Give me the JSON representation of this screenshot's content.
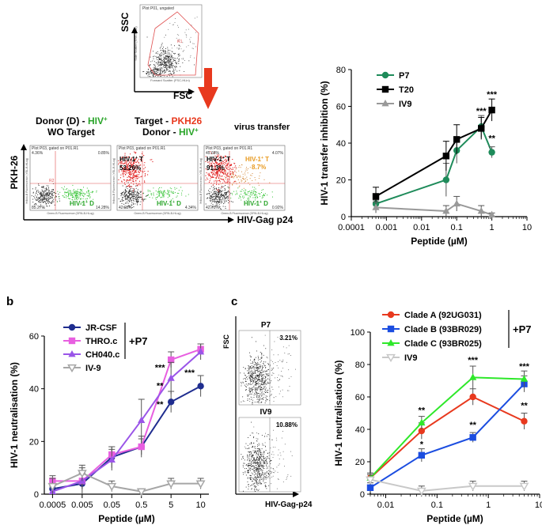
{
  "panels": {
    "a": "a",
    "b": "b",
    "c": "c"
  },
  "flow": {
    "ssc": "SSC",
    "fsc": "FSC",
    "pkh26": "PKH-26",
    "hiv_gag": "HIV-Gag p24",
    "scatter_title": "Plot P01, ungated",
    "gate_r1": "R1",
    "donor_title_1": "Donor (D) - ",
    "donor_title_hiv": "HIV",
    "donor_title_2": "WO Target",
    "target_title_1": "Target - ",
    "target_title_pkh": "PKH26",
    "target_title_2": "Donor - ",
    "virus_transfer": "virus transfer",
    "plot1_title": "Plot P03, gated on P01.R1",
    "plot2_title": "Plot P03, gated on P01.R1",
    "plot3_title": "Plot P03, gated on P01.R1",
    "plot1_q_ul": "4.36%",
    "plot1_q_ur": "0.85%",
    "plot1_q_ll": "85.27%",
    "plot1_q_lr": "14.28%",
    "plot2_q_ll": "42.28%",
    "plot2_q_lr": "4.34%",
    "plot3_q_ul": "45.68%",
    "plot3_q_ur": "4.07%",
    "plot3_q_ll": "42.73%",
    "plot3_q_lr": "0.92%",
    "hiv_d": "HIV-1",
    "hiv_d_sup": "+",
    "hiv_d_suffix": " D",
    "hiv_t": "HIV-1",
    "hiv_t_suffix": " T",
    "plot2_pct": "53.26%",
    "plot3_pct": "91.3%",
    "plot3_orange": "HIV-1",
    "plot3_orange_pct": "8.7%",
    "plot_ylabel": "Yellow-B Fluorescence (YEL-B-HLog)",
    "plot_xlabel": "Green-B Fluorescence (GRN-B-HLog)",
    "scatter_ylabel": "Side Scatter (SSC-HLin)",
    "scatter_xlabel": "Forward Scatter (FSC-HLin)",
    "gate_r2": "R2"
  },
  "fig_c_flow": {
    "fsc": "FSC",
    "xlabel": "HIV-Gag-p24",
    "top_label": "P7",
    "top_pct": "3.21%",
    "bottom_label": "IV9",
    "bottom_pct": "10.88%"
  },
  "chart_data": [
    {
      "id": "a_right",
      "type": "line",
      "xscale": "log",
      "xlim": [
        0.0001,
        10
      ],
      "ylim": [
        0,
        80
      ],
      "xticks": [
        "0.0001",
        "0.001",
        "0.01",
        "0.1",
        "1",
        "10"
      ],
      "yticks": [
        "0",
        "20",
        "40",
        "60",
        "80"
      ],
      "xlabel": "Peptide (µM)",
      "ylabel": "HIV-1 transfer inhibition (%)",
      "legend_position": "top-left",
      "series": [
        {
          "name": "P7",
          "color": "#1e8b5a",
          "marker": "circle",
          "x": [
            0.0005,
            0.05,
            0.1,
            0.5,
            1
          ],
          "y": [
            7,
            20,
            36,
            49,
            35
          ],
          "err": [
            2,
            9,
            7,
            6,
            3
          ]
        },
        {
          "name": "T20",
          "color": "#000000",
          "marker": "square",
          "x": [
            0.0005,
            0.05,
            0.1,
            0.5,
            1
          ],
          "y": [
            11,
            33,
            42,
            48,
            58
          ],
          "err": [
            5,
            8,
            8,
            6,
            6
          ]
        },
        {
          "name": "IV9",
          "color": "#999999",
          "marker": "triangle",
          "x": [
            0.0005,
            0.05,
            0.1,
            0.5,
            1
          ],
          "y": [
            5,
            3,
            7,
            3,
            1
          ],
          "err": [
            3,
            3,
            4,
            3,
            1
          ]
        }
      ],
      "annotations": [
        {
          "x": 0.5,
          "y": 56,
          "text": "***"
        },
        {
          "x": 1,
          "y": 65,
          "text": "***"
        },
        {
          "x": 1,
          "y": 41,
          "text": "**"
        }
      ]
    },
    {
      "id": "b",
      "type": "line",
      "categories": [
        "0.0005",
        "0.005",
        "0.05",
        "0.5",
        "5",
        "10"
      ],
      "ylim": [
        0,
        60
      ],
      "yticks": [
        "0",
        "20",
        "40",
        "60"
      ],
      "xlabel": "Peptide (µM)",
      "ylabel": "HIV-1 neutralisation (%)",
      "group_label": "+P7",
      "legend_position": "top-left",
      "series": [
        {
          "name": "JR-CSF",
          "color": "#1f2d8f",
          "marker": "circle",
          "y": [
            2,
            4,
            14,
            18,
            35,
            41
          ],
          "err": [
            3,
            6,
            4,
            3,
            4,
            4
          ]
        },
        {
          "name": "THRO.c",
          "color": "#e85fe0",
          "marker": "square",
          "y": [
            5,
            5,
            15,
            18,
            51,
            55
          ],
          "err": [
            2,
            3,
            3,
            4,
            3,
            2
          ]
        },
        {
          "name": "CH040.c",
          "color": "#9a55e8",
          "marker": "triangle",
          "y": [
            1,
            5,
            13,
            28,
            44,
            54
          ],
          "err": [
            2,
            3,
            4,
            8,
            6,
            3
          ]
        },
        {
          "name": "IV-9",
          "color": "#a6a6a6",
          "marker": "triangle-down",
          "y": [
            3,
            8,
            3,
            1,
            4,
            4
          ],
          "err": [
            3,
            3,
            2,
            1,
            2,
            2
          ]
        }
      ],
      "annotations": [
        {
          "cat": 4,
          "y": 47,
          "text": "***"
        },
        {
          "cat": 4,
          "y": 40,
          "text": "**"
        },
        {
          "cat": 4,
          "y": 33,
          "text": "**"
        },
        {
          "cat": 5,
          "y": 45,
          "text": "***"
        }
      ]
    },
    {
      "id": "c_right",
      "type": "line",
      "xscale": "log",
      "xlim": [
        0.005,
        10
      ],
      "ylim": [
        0,
        100
      ],
      "xticks": [
        "0.01",
        "0.1",
        "1",
        "10"
      ],
      "yticks": [
        "0",
        "20",
        "40",
        "60",
        "80",
        "100"
      ],
      "xlabel": "Peptide (µM)",
      "ylabel": "HIV-1 neutralisation (%)",
      "group_label": "+P7",
      "legend_position": "top-left",
      "series": [
        {
          "name": "Clade A (92UG031)",
          "color": "#e8391e",
          "marker": "circle",
          "x": [
            0.005,
            0.05,
            0.5,
            5
          ],
          "y": [
            10,
            39,
            60,
            45
          ],
          "err": [
            3,
            5,
            5,
            5
          ]
        },
        {
          "name": "Clade B (93BR029)",
          "color": "#1b4de0",
          "marker": "square",
          "x": [
            0.005,
            0.05,
            0.5,
            5
          ],
          "y": [
            4,
            24,
            35,
            68
          ],
          "err": [
            3,
            4,
            3,
            5
          ]
        },
        {
          "name": "Clade C (93BR025)",
          "color": "#2ee82a",
          "marker": "triangle",
          "x": [
            0.005,
            0.05,
            0.5,
            5
          ],
          "y": [
            10,
            44,
            72,
            71
          ],
          "err": [
            3,
            4,
            7,
            5
          ]
        },
        {
          "name": "IV9",
          "color": "#c8c8c8",
          "marker": "triangle-down",
          "x": [
            0.005,
            0.05,
            0.5,
            5
          ],
          "y": [
            9,
            2,
            5,
            5
          ],
          "err": [
            3,
            3,
            3,
            3
          ]
        }
      ],
      "annotations": [
        {
          "x": 0.05,
          "y": 50,
          "text": "**"
        },
        {
          "x": 0.05,
          "y": 29,
          "text": "*"
        },
        {
          "x": 0.5,
          "y": 81,
          "text": "***"
        },
        {
          "x": 0.5,
          "y": 41,
          "text": "**"
        },
        {
          "x": 5,
          "y": 77,
          "text": "***"
        },
        {
          "x": 5,
          "y": 53,
          "text": "**"
        }
      ]
    }
  ]
}
